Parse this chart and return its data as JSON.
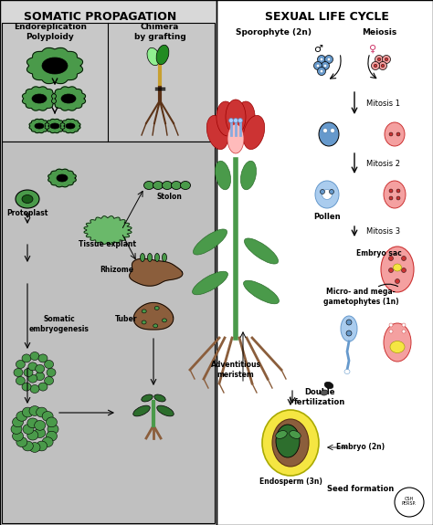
{
  "title": "SOMATIC PROPAGATION",
  "title2": "SEXUAL LIFE CYCLE",
  "bg_color": "#d8d8d8",
  "white": "#ffffff",
  "light_gray": "#d8d8d8",
  "dark_gray": "#a0a0a0",
  "green": "#4a9a4a",
  "dark_green": "#2d6e2d",
  "light_green": "#7fc97f",
  "red": "#cc3333",
  "light_red": "#f08080",
  "pink": "#f4a0a0",
  "brown": "#8B5E3C",
  "dark_brown": "#5C3317",
  "blue": "#6699cc",
  "light_blue": "#aaccee",
  "yellow": "#f5e642",
  "black": "#000000",
  "section_labels": {
    "somatic_left": "Endoreplication\nPolyploidy",
    "somatic_right": "Chimera\nby grafting",
    "protoplast": "Protoplast",
    "tissue_explant": "Tissue explant",
    "stolon": "Stolon",
    "rhizome": "Rhizome",
    "tuber": "Tuber",
    "somatic_embryogenesis": "Somatic\nembryogenesis",
    "adventitious_meristem": "Adventitious\nmeristem",
    "sporophyte": "Sporophyte (2n)",
    "meiosis": "Meiosis",
    "mitosis1": "Mitosis 1",
    "mitosis2": "Mitosis 2",
    "pollen": "Pollen",
    "mitosis3": "Mitosis 3",
    "embryo_sac": "Embryo sac",
    "micro_mega": "Micro- and mega-\ngametophytes (1n)",
    "double_fert": "Double\nfertilization",
    "endosperm": "Endosperm (3n)",
    "embryo": "Embryo (2n)",
    "seed_formation": "Seed formation"
  }
}
